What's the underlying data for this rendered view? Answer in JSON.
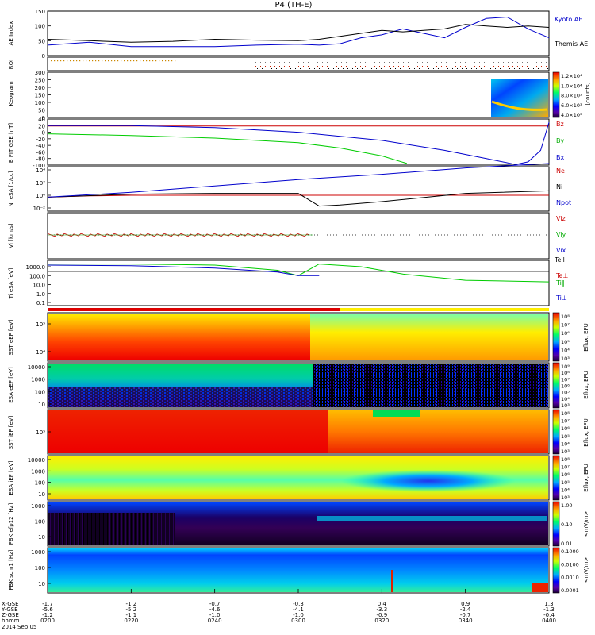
{
  "title": "P4 (TH-E)",
  "footer": {
    "date": "2014 Sep 05",
    "row_labels": [
      "X-GSE",
      "Y-GSE",
      "Z-GSE",
      "hhmm"
    ],
    "columns": [
      {
        "x": "-1.7",
        "y": "-5.6",
        "z": "-1.2",
        "t": "0200"
      },
      {
        "x": "-1.2",
        "y": "-5.2",
        "z": "-1.1",
        "t": "0220"
      },
      {
        "x": "-0.7",
        "y": "-4.6",
        "z": "-1.0",
        "t": "0240"
      },
      {
        "x": "-0.3",
        "y": "-4.1",
        "z": "-1.0",
        "t": "0300"
      },
      {
        "x": "0.4",
        "y": "-3.3",
        "z": "-0.9",
        "t": "0320"
      },
      {
        "x": "0.9",
        "y": "-2.4",
        "z": "-0.7",
        "t": "0340"
      },
      {
        "x": "1.3",
        "y": "-1.3",
        "z": "-0.4",
        "t": "0400"
      }
    ]
  },
  "colors": {
    "kyoto": "#0000cc",
    "themis": "#000000",
    "bz": "#cc0000",
    "by": "#00cc00",
    "bx": "#0000cc",
    "ne": "#cc0000",
    "ni": "#000000",
    "npot": "#0000cc",
    "vix": "#0000cc",
    "viy": "#00aa00",
    "viz": "#cc0000",
    "tell": "#000000",
    "teperp": "#cc0000",
    "tipar": "#00cc00",
    "tiperp": "#0000cc"
  },
  "chart_data": [
    {
      "type": "line",
      "panel": "ae",
      "ylabel": "AE Index",
      "ylim": [
        0,
        150
      ],
      "yticks": [
        "150",
        "100",
        "50",
        "0"
      ],
      "x_time_range": [
        "02:00",
        "04:00"
      ],
      "series": [
        {
          "name": "Kyoto AE",
          "x": [
            0,
            10,
            20,
            30,
            40,
            50,
            60,
            65,
            70,
            75,
            80,
            85,
            90,
            95,
            100,
            105,
            110,
            115,
            120
          ],
          "values": [
            35,
            45,
            30,
            30,
            30,
            35,
            38,
            35,
            40,
            60,
            70,
            90,
            75,
            60,
            95,
            125,
            130,
            90,
            60
          ]
        },
        {
          "name": "Themis AE",
          "x": [
            0,
            10,
            20,
            30,
            40,
            50,
            60,
            65,
            70,
            75,
            80,
            85,
            90,
            95,
            100,
            105,
            110,
            115,
            120
          ],
          "values": [
            55,
            50,
            45,
            48,
            55,
            52,
            50,
            55,
            65,
            75,
            85,
            80,
            85,
            90,
            105,
            100,
            95,
            100,
            95
          ]
        }
      ]
    },
    {
      "type": "heatmap",
      "panel": "roi",
      "ylabel": "ROI"
    },
    {
      "type": "heatmap",
      "panel": "keogram",
      "ylabel": "Keogram",
      "ylim": [
        0,
        300
      ],
      "yticks": [
        "300",
        "250",
        "200",
        "150",
        "100",
        "50",
        "0"
      ],
      "colorbar": {
        "label": "[counts]",
        "ticks": [
          "1.2×10⁴",
          "1.0×10⁴",
          "8.0×10³",
          "6.0×10³",
          "4.0×10³"
        ]
      }
    },
    {
      "type": "line",
      "panel": "bfield",
      "ylabel": "B FIT GSE [nT]",
      "ylim": [
        -100,
        40
      ],
      "yticks": [
        "40",
        "20",
        "0",
        "-20",
        "-40",
        "-60",
        "-80",
        "-100"
      ],
      "series": [
        {
          "name": "Bz",
          "x": [
            0,
            120
          ],
          "values": [
            19,
            19
          ]
        },
        {
          "name": "By",
          "x": [
            0,
            20,
            40,
            60,
            70,
            80,
            86
          ],
          "values": [
            -5,
            -10,
            -18,
            -32,
            -48,
            -72,
            -95
          ]
        },
        {
          "name": "Bx",
          "x": [
            0,
            20,
            40,
            60,
            80,
            95,
            105,
            112,
            115,
            118,
            120
          ],
          "values": [
            20,
            20,
            14,
            0,
            -25,
            -55,
            -80,
            -98,
            -90,
            -55,
            30
          ]
        }
      ]
    },
    {
      "type": "line",
      "panel": "density",
      "ylabel": "Ni eSA [1/cc]",
      "ylog": true,
      "yticks": [
        "10⁴",
        "10²",
        "10⁰",
        "10⁻²"
      ],
      "series": [
        {
          "name": "Ne",
          "x": [
            0,
            10,
            20,
            40,
            60,
            80,
            100,
            120
          ],
          "values": [
            0.5,
            0.8,
            1,
            1,
            1,
            1,
            1,
            1
          ]
        },
        {
          "name": "Ni",
          "x": [
            0,
            20,
            40,
            60,
            65,
            70,
            80,
            100,
            120
          ],
          "values": [
            0.5,
            1.5,
            2,
            2,
            0.02,
            0.03,
            0.1,
            2,
            5
          ]
        },
        {
          "name": "Npot",
          "x": [
            0,
            20,
            40,
            60,
            80,
            100,
            120
          ],
          "values": [
            0.5,
            3,
            30,
            300,
            2000,
            20000,
            100000
          ]
        }
      ]
    },
    {
      "type": "line",
      "panel": "velocity",
      "ylabel": "Vi [km/s]",
      "series": [
        {
          "name": "Vix"
        },
        {
          "name": "Viy"
        },
        {
          "name": "Viz"
        }
      ]
    },
    {
      "type": "line",
      "panel": "temperature",
      "ylabel": "Ti eSA [eV]",
      "ylog": true,
      "yticks": [
        "1000.0",
        "100.0",
        "10.0",
        "1.0",
        "0.1"
      ],
      "series": [
        {
          "name": "Tell",
          "x": [
            0,
            60,
            120
          ],
          "values": [
            300,
            300,
            300
          ]
        },
        {
          "name": "Te⊥",
          "x": [
            0,
            120
          ],
          "values": [
            0,
            0
          ]
        },
        {
          "name": "Ti∥",
          "x": [
            0,
            20,
            40,
            55,
            60,
            65,
            75,
            85,
            100,
            120
          ],
          "values": [
            2000,
            2000,
            1500,
            400,
            100,
            2000,
            1000,
            150,
            30,
            20
          ]
        },
        {
          "name": "Ti⊥",
          "x": [
            0,
            20,
            40,
            55,
            60,
            65
          ],
          "values": [
            1500,
            1300,
            700,
            250,
            100,
            100
          ]
        }
      ]
    },
    {
      "type": "heatmap",
      "panel": "sst_e",
      "ylabel": "SST eEF [eV]",
      "yticks": [
        "10⁵",
        "10⁴"
      ],
      "colorbar": {
        "label": "Eflux, EFU",
        "ticks": [
          "10⁸",
          "10⁷",
          "10⁶",
          "10⁵",
          "10⁴",
          "10³"
        ]
      }
    },
    {
      "type": "heatmap",
      "panel": "esa_e",
      "ylabel": "ESA eEF [eV]",
      "yticks": [
        "10000",
        "1000",
        "100",
        "10"
      ],
      "colorbar": {
        "label": "Eflux, EFU",
        "ticks": [
          "10⁹",
          "10⁸",
          "10⁷",
          "10⁶",
          "10⁵",
          "10⁴",
          "10³"
        ]
      }
    },
    {
      "type": "heatmap",
      "panel": "sst_i",
      "ylabel": "SST iEF [eV]",
      "yticks": [
        "10⁵"
      ],
      "colorbar": {
        "label": "Eflux, EFU",
        "ticks": [
          "10⁸",
          "10⁷",
          "10⁶",
          "10⁵",
          "10⁴",
          "10³"
        ]
      }
    },
    {
      "type": "heatmap",
      "panel": "esa_i",
      "ylabel": "ESA iEF [eV]",
      "yticks": [
        "10000",
        "1000",
        "100",
        "10"
      ],
      "colorbar": {
        "label": "Eflux, EFU",
        "ticks": [
          "10⁸",
          "10⁷",
          "10⁶",
          "10⁵",
          "10⁴",
          "10³"
        ]
      }
    },
    {
      "type": "heatmap",
      "panel": "fbk_e",
      "ylabel": "FBK efp12 [Hz]",
      "yticks": [
        "1000",
        "100",
        "10"
      ],
      "colorbar": {
        "label": "<mV/m>",
        "ticks": [
          "1.00",
          "0.10",
          "0.01"
        ]
      }
    },
    {
      "type": "heatmap",
      "panel": "fbk_b",
      "ylabel": "FBK scm1 [Hz]",
      "yticks": [
        "1000",
        "100",
        "10"
      ],
      "colorbar": {
        "label": "<mV/m>",
        "ticks": [
          "0.1000",
          "0.0100",
          "0.0010",
          "0.0001"
        ]
      }
    }
  ]
}
